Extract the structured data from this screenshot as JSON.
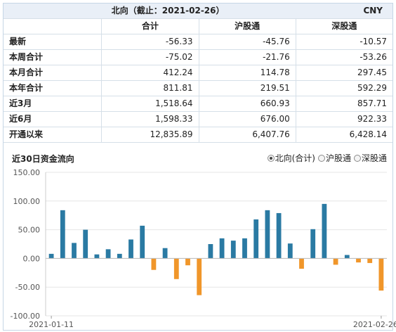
{
  "table": {
    "title": "北向（截止：2021-02-26）",
    "currency": "CNY",
    "headers": [
      "合计",
      "沪股通",
      "深股通"
    ],
    "rows": [
      {
        "label": "最新",
        "values": [
          "-56.33",
          "-45.76",
          "-10.57"
        ]
      },
      {
        "label": "本周合计",
        "values": [
          "-75.02",
          "-21.76",
          "-53.26"
        ]
      },
      {
        "label": "本月合计",
        "values": [
          "412.24",
          "114.78",
          "297.45"
        ]
      },
      {
        "label": "本年合计",
        "values": [
          "811.81",
          "219.51",
          "592.29"
        ]
      },
      {
        "label": "近3月",
        "values": [
          "1,518.64",
          "660.93",
          "857.71"
        ]
      },
      {
        "label": "近6月",
        "values": [
          "1,598.33",
          "676.00",
          "922.33"
        ]
      },
      {
        "label": "开通以来",
        "values": [
          "12,835.89",
          "6,407.76",
          "6,428.14"
        ]
      }
    ]
  },
  "chart_title": "近30日资金流向",
  "legend": {
    "options": [
      {
        "label": "北向(合计)",
        "selected": true
      },
      {
        "label": "沪股通",
        "selected": false
      },
      {
        "label": "深股通",
        "selected": false
      }
    ]
  },
  "chart_data": {
    "type": "bar",
    "series_name": "北向(合计)",
    "categories": [
      "2021-01-11",
      "",
      "",
      "",
      "",
      "",
      "",
      "",
      "",
      "",
      "",
      "",
      "",
      "",
      "",
      "",
      "",
      "",
      "",
      "",
      "",
      "",
      "",
      "",
      "",
      "",
      "",
      "",
      "",
      "2021-02-26"
    ],
    "values": [
      8,
      84,
      27,
      50,
      7,
      16,
      8,
      33,
      57,
      -20,
      18,
      -36,
      -12,
      -64,
      25,
      35,
      31,
      35,
      68,
      84,
      79,
      26,
      -18,
      51,
      95,
      -11,
      6,
      -7,
      -8,
      -56
    ],
    "ylim": [
      -100,
      150
    ],
    "yticks": [
      -100,
      -50,
      0,
      50,
      100,
      150
    ],
    "ytick_labels": [
      "-100.00",
      "-50.00",
      "0.00",
      "50.00",
      "100.00",
      "150.00"
    ],
    "xtick_labels": [
      "2021-01-11",
      "2021-02-26"
    ],
    "colors": {
      "positive": "#2a7aa3",
      "negative": "#f0962a"
    },
    "grid": true
  }
}
